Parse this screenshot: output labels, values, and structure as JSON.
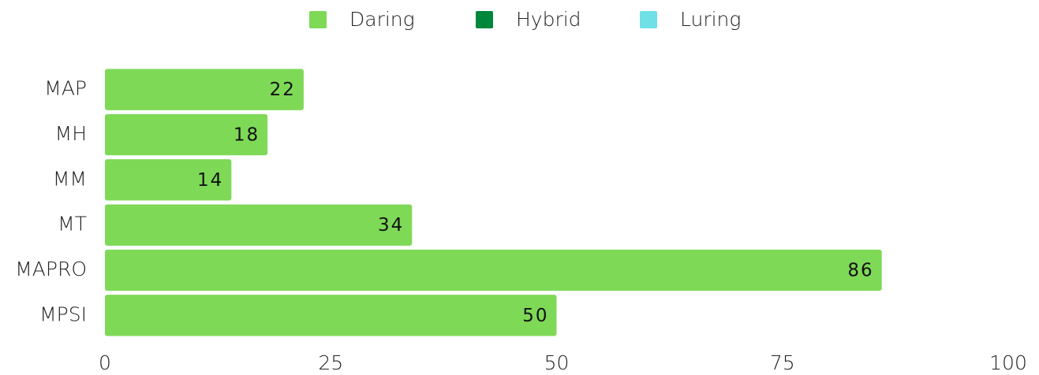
{
  "chart_data": {
    "type": "bar",
    "orientation": "horizontal",
    "categories": [
      "MAP",
      "MH",
      "MM",
      "MT",
      "MAPRO",
      "MPSI"
    ],
    "series": [
      {
        "name": "Daring",
        "color": "#7ed957",
        "values": [
          22,
          18,
          14,
          34,
          86,
          50
        ]
      },
      {
        "name": "Hybrid",
        "color": "#00873c",
        "values": [
          null,
          null,
          null,
          null,
          null,
          null
        ]
      },
      {
        "name": "Luring",
        "color": "#6ee0e6",
        "values": [
          null,
          null,
          null,
          null,
          null,
          null
        ]
      }
    ],
    "xlim": [
      0,
      100
    ],
    "xticks": [
      0,
      25,
      50,
      75,
      100
    ],
    "grid": false,
    "legend": "top"
  }
}
